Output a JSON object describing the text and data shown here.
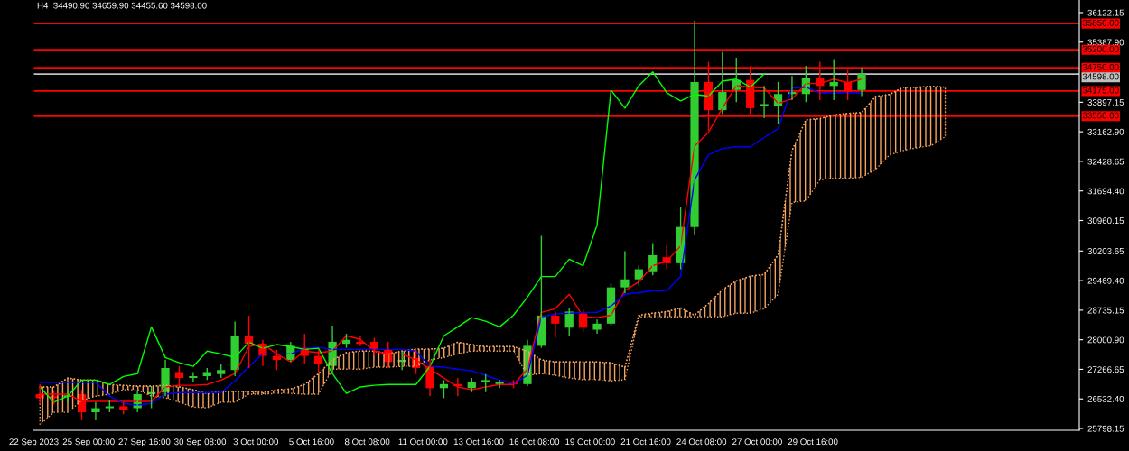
{
  "chart_data": {
    "type": "candlestick",
    "title": "H4  34490.90 34659.90 34455.60 34598.00",
    "x": [
      "2023-09-22T16:00",
      "2023-09-23T08:00",
      "2023-09-24T00:00",
      "2023-09-24T16:00",
      "2023-09-25T08:00",
      "2023-09-26T00:00",
      "2023-09-26T16:00",
      "2023-09-27T08:00",
      "2023-09-28T00:00",
      "2023-09-28T16:00",
      "2023-09-29T08:00",
      "2023-09-30T00:00",
      "2023-09-30T16:00",
      "2023-10-01T08:00",
      "2023-10-02T00:00",
      "2023-10-02T16:00",
      "2023-10-03T08:00",
      "2023-10-04T00:00",
      "2023-10-04T16:00",
      "2023-10-05T08:00",
      "2023-10-06T00:00",
      "2023-10-06T16:00",
      "2023-10-07T08:00",
      "2023-10-08T00:00",
      "2023-10-08T16:00",
      "2023-10-09T08:00",
      "2023-10-10T00:00",
      "2023-10-10T16:00",
      "2023-10-11T08:00",
      "2023-10-12T00:00",
      "2023-10-12T16:00",
      "2023-10-13T08:00",
      "2023-10-14T00:00",
      "2023-10-14T16:00",
      "2023-10-15T08:00",
      "2023-10-16T00:00",
      "2023-10-16T16:00",
      "2023-10-17T08:00",
      "2023-10-18T00:00",
      "2023-10-18T16:00",
      "2023-10-19T08:00",
      "2023-10-20T00:00",
      "2023-10-20T16:00",
      "2023-10-21T08:00",
      "2023-10-22T00:00",
      "2023-10-22T16:00",
      "2023-10-23T08:00",
      "2023-10-24T00:00",
      "2023-10-24T16:00",
      "2023-10-25T08:00",
      "2023-10-26T00:00",
      "2023-10-26T16:00",
      "2023-10-27T08:00",
      "2023-10-28T00:00",
      "2023-10-28T16:00",
      "2023-10-29T08:00",
      "2023-10-30T00:00",
      "2023-10-30T16:00",
      "2023-10-31T08:00",
      "2023-11-01T00:00"
    ],
    "ohlc": [
      [
        26650,
        26900,
        26400,
        26550
      ],
      [
        26600,
        26750,
        26400,
        26550
      ],
      [
        26580,
        26750,
        26450,
        26620
      ],
      [
        26650,
        26750,
        26000,
        26200
      ],
      [
        26200,
        26450,
        26000,
        26300
      ],
      [
        26300,
        26500,
        26200,
        26350
      ],
      [
        26350,
        26450,
        26150,
        26250
      ],
      [
        26300,
        26750,
        26200,
        26650
      ],
      [
        26650,
        26850,
        26300,
        26700
      ],
      [
        26700,
        27500,
        26600,
        27300
      ],
      [
        27200,
        27350,
        26850,
        27050
      ],
      [
        27050,
        27200,
        26950,
        27100
      ],
      [
        27100,
        27300,
        27000,
        27200
      ],
      [
        27150,
        27400,
        27050,
        27250
      ],
      [
        27250,
        28450,
        27100,
        28100
      ],
      [
        28100,
        28600,
        27300,
        27900
      ],
      [
        27900,
        28000,
        27350,
        27600
      ],
      [
        27600,
        27750,
        27250,
        27500
      ],
      [
        27500,
        27950,
        27450,
        27850
      ],
      [
        27800,
        28150,
        27400,
        27600
      ],
      [
        27600,
        27750,
        27200,
        27400
      ],
      [
        27350,
        28350,
        27150,
        27950
      ],
      [
        27900,
        28150,
        27800,
        28000
      ],
      [
        27950,
        28100,
        27850,
        27900
      ],
      [
        27950,
        28050,
        27600,
        27750
      ],
      [
        27750,
        27950,
        27300,
        27450
      ],
      [
        27450,
        27700,
        27250,
        27500
      ],
      [
        27550,
        27750,
        27150,
        27300
      ],
      [
        27350,
        27500,
        26600,
        26800
      ],
      [
        26800,
        27000,
        26550,
        26900
      ],
      [
        26900,
        27050,
        26600,
        26850
      ],
      [
        26800,
        27050,
        26700,
        26950
      ],
      [
        26950,
        27150,
        26700,
        27000
      ],
      [
        26900,
        27000,
        26800,
        26950
      ],
      [
        26950,
        27000,
        26800,
        26900
      ],
      [
        26900,
        28000,
        26850,
        27850
      ],
      [
        27850,
        30580,
        27800,
        28600
      ],
      [
        28600,
        28700,
        28050,
        28400
      ],
      [
        28300,
        28800,
        28100,
        28700
      ],
      [
        28650,
        28750,
        28200,
        28300
      ],
      [
        28250,
        28500,
        28150,
        28400
      ],
      [
        28400,
        29400,
        28350,
        29300
      ],
      [
        29300,
        30200,
        29150,
        29500
      ],
      [
        29500,
        29850,
        29350,
        29750
      ],
      [
        29700,
        30400,
        29600,
        30100
      ],
      [
        30050,
        30350,
        29750,
        29900
      ],
      [
        29900,
        31300,
        29750,
        30800
      ],
      [
        30800,
        35920,
        30600,
        34400
      ],
      [
        34400,
        34900,
        33200,
        33700
      ],
      [
        33700,
        35150,
        33600,
        34150
      ],
      [
        34200,
        35000,
        33900,
        34450
      ],
      [
        34450,
        34800,
        33600,
        33750
      ],
      [
        33800,
        34300,
        33500,
        33850
      ],
      [
        33800,
        34400,
        33350,
        34100
      ],
      [
        34100,
        34550,
        33950,
        34150
      ],
      [
        34100,
        34800,
        33900,
        34500
      ],
      [
        34500,
        34900,
        33950,
        34300
      ],
      [
        34300,
        34970,
        33950,
        34400
      ],
      [
        34400,
        34700,
        33950,
        34150
      ],
      [
        34200,
        34750,
        34050,
        34598
      ]
    ],
    "colors": [
      "#ff0000",
      "#ff0000",
      "#32cd32",
      "#ff0000",
      "#32cd32",
      "#32cd32",
      "#ff0000",
      "#32cd32",
      "#32cd32",
      "#32cd32",
      "#ff0000",
      "#32cd32",
      "#32cd32",
      "#32cd32",
      "#32cd32",
      "#ff0000",
      "#ff0000",
      "#ff0000",
      "#32cd32",
      "#ff0000",
      "#ff0000",
      "#32cd32",
      "#32cd32",
      "#ff0000",
      "#ff0000",
      "#ff0000",
      "#32cd32",
      "#ff0000",
      "#ff0000",
      "#32cd32",
      "#ff0000",
      "#32cd32",
      "#32cd32",
      "#32cd32",
      "#ff0000",
      "#32cd32",
      "#32cd32",
      "#ff0000",
      "#32cd32",
      "#ff0000",
      "#32cd32",
      "#32cd32",
      "#32cd32",
      "#32cd32",
      "#32cd32",
      "#ff0000",
      "#32cd32",
      "#32cd32",
      "#ff0000",
      "#32cd32",
      "#32cd32",
      "#ff0000",
      "#32cd32",
      "#32cd32",
      "#32cd32",
      "#32cd32",
      "#ff0000",
      "#32cd32",
      "#ff0000",
      "#32cd32"
    ],
    "series": [
      {
        "type": "line",
        "color": "#f4a460",
        "line_style": "dotted",
        "x": [
          "2023-09-22T16:00",
          "2023-09-23T08:00",
          "2023-09-24T00:00",
          "2023-09-24T16:00",
          "2023-09-25T08:00",
          "2023-09-26T00:00",
          "2023-09-26T16:00",
          "2023-09-27T08:00",
          "2023-09-28T00:00",
          "2023-09-28T16:00",
          "2023-09-29T08:00",
          "2023-09-30T00:00",
          "2023-09-30T16:00",
          "2023-10-01T08:00",
          "2023-10-02T00:00",
          "2023-10-02T16:00",
          "2023-10-03T08:00",
          "2023-10-04T00:00",
          "2023-10-04T16:00",
          "2023-10-05T08:00",
          "2023-10-06T00:00",
          "2023-10-06T16:00",
          "2023-10-07T08:00",
          "2023-10-08T00:00",
          "2023-10-08T16:00",
          "2023-10-09T08:00",
          "2023-10-10T00:00",
          "2023-10-10T16:00",
          "2023-10-11T08:00",
          "2023-10-12T00:00",
          "2023-10-12T16:00",
          "2023-10-13T08:00",
          "2023-10-14T00:00",
          "2023-10-14T16:00",
          "2023-10-15T08:00",
          "2023-10-16T00:00",
          "2023-10-16T16:00",
          "2023-10-17T08:00",
          "2023-10-18T00:00",
          "2023-10-18T16:00",
          "2023-10-19T08:00",
          "2023-10-20T00:00",
          "2023-10-20T16:00",
          "2023-10-21T08:00",
          "2023-10-22T00:00",
          "2023-10-22T16:00",
          "2023-10-23T08:00",
          "2023-10-24T00:00",
          "2023-10-24T16:00",
          "2023-10-25T08:00",
          "2023-10-26T00:00",
          "2023-10-26T16:00",
          "2023-10-27T08:00",
          "2023-10-28T00:00",
          "2023-10-28T16:00",
          "2023-10-29T08:00",
          "2023-10-30T00:00",
          "2023-10-30T16:00",
          "2023-10-31T08:00",
          "2023-11-01T00:00",
          "2023-11-01T16:00",
          "2023-11-02T08:00",
          "2023-11-03T00:00",
          "2023-11-03T16:00",
          "2023-11-04T08:00",
          "2023-11-05T00:00"
        ],
        "values": [
          26830,
          26830,
          27050,
          27000,
          27000,
          26890,
          26870,
          26850,
          26850,
          26870,
          26830,
          26760,
          26670,
          26720,
          26720,
          26720,
          26690,
          26760,
          26780,
          26890,
          27160,
          27500,
          27680,
          27720,
          27720,
          27650,
          27720,
          27770,
          27770,
          27790,
          27940,
          27880,
          27830,
          27830,
          27830,
          27720,
          27500,
          27450,
          27450,
          27450,
          27450,
          27430,
          27320,
          28610,
          28660,
          28700,
          28790,
          28610,
          28900,
          29240,
          29460,
          29580,
          29620,
          30110,
          32700,
          33460,
          33490,
          33580,
          33620,
          33640,
          34040,
          34090,
          34270,
          34270,
          34290,
          34270
        ],
        "upper": [
          26830,
          26830,
          27050,
          27000,
          27000,
          26890,
          26870,
          26850,
          26850,
          26870,
          26830,
          26760,
          26670,
          26720,
          26720,
          26720,
          26690,
          26760,
          26780,
          26890,
          27160,
          27500,
          27680,
          27720,
          27720,
          27650,
          27720,
          27770,
          27770,
          27790,
          27940,
          27880,
          27830,
          27830,
          27830,
          27720,
          27500,
          27450,
          27450,
          27450,
          27450,
          27430,
          27320,
          28610,
          28660,
          28700,
          28790,
          28610,
          28900,
          29240,
          29460,
          29580,
          29620,
          30110,
          32700,
          33460,
          33490,
          33580,
          33620,
          33640,
          34040,
          34090,
          34270,
          34270,
          34290,
          34270
        ],
        "lower": [
          25890,
          26200,
          26200,
          26490,
          26600,
          26650,
          26760,
          26760,
          26600,
          26560,
          26450,
          26330,
          26310,
          26450,
          26450,
          26650,
          26650,
          26670,
          26670,
          26650,
          26650,
          27270,
          27270,
          27270,
          27320,
          27320,
          27340,
          27340,
          27500,
          27560,
          27650,
          27720,
          27720,
          27720,
          27720,
          27120,
          27160,
          27120,
          27050,
          27010,
          27010,
          26980,
          27010,
          28570,
          28570,
          28570,
          28570,
          28570,
          28570,
          28570,
          28660,
          28660,
          28770,
          29130,
          31410,
          31450,
          31970,
          32010,
          32010,
          32030,
          32230,
          32590,
          32700,
          32770,
          32820,
          33040
        ]
      },
      {
        "type": "line",
        "color": "#ff0000",
        "values": [
          26650,
          26650,
          26650,
          26470,
          26470,
          26470,
          26470,
          26470,
          26470,
          26830,
          26870,
          26870,
          26890,
          27000,
          27160,
          27830,
          27900,
          27650,
          27450,
          27720,
          27680,
          27720,
          28100,
          28010,
          27720,
          27650,
          27650,
          27500,
          27270,
          27050,
          26830,
          26760,
          26830,
          26890,
          26890,
          27270,
          28680,
          28770,
          29130,
          28570,
          28550,
          28610,
          29220,
          29440,
          29840,
          29950,
          30330,
          32810,
          33150,
          33750,
          34310,
          34270,
          34250,
          33870,
          33980,
          34360,
          34360,
          34470,
          34380,
          34470
        ]
      },
      {
        "type": "line",
        "color": "#0000ff",
        "values": [
          26940,
          26940,
          26940,
          26940,
          26940,
          26600,
          26420,
          26380,
          26420,
          26650,
          26690,
          26690,
          26690,
          26690,
          26980,
          27340,
          27650,
          27650,
          27650,
          27790,
          27810,
          27760,
          27760,
          27760,
          27760,
          27760,
          27760,
          27720,
          27340,
          27320,
          27270,
          27230,
          27120,
          27000,
          26910,
          27120,
          28570,
          28640,
          28660,
          28680,
          28680,
          28840,
          29130,
          29170,
          29220,
          29220,
          29570,
          31970,
          32590,
          32750,
          32790,
          32790,
          33020,
          33240,
          34250,
          34270,
          34130,
          34130,
          34130,
          34130
        ]
      },
      {
        "type": "line",
        "color": "#00ff00",
        "values": [
          26830,
          26450,
          26600,
          27000,
          27000,
          26890,
          27090,
          27160,
          28320,
          27560,
          27430,
          27340,
          27720,
          27650,
          27560,
          27940,
          27790,
          27880,
          27830,
          27760,
          27790,
          27160,
          26670,
          26830,
          26870,
          26890,
          26890,
          26890,
          27340,
          28100,
          28320,
          28550,
          28460,
          28320,
          28610,
          29060,
          29570,
          29570,
          30000,
          29840,
          30850,
          34200,
          33750,
          34310,
          34650,
          34130,
          33930,
          34090,
          34050,
          34420,
          34470,
          34270,
          34600,
          null,
          null,
          null,
          null,
          null,
          null,
          null
        ]
      }
    ],
    "xlim": [
      "2023-09-22T09:00",
      "2023-11-11T10:00"
    ],
    "ylim": [
      25754,
      36435
    ],
    "xticks": [
      {
        "value": "2023-09-22T09:00",
        "label": "22 Sep 2023"
      },
      {
        "value": "2023-09-25T00:00",
        "label": "25 Sep 00:00"
      },
      {
        "value": "2023-09-27T16:00",
        "label": "27 Sep 16:00"
      },
      {
        "value": "2023-09-30T08:00",
        "label": "30 Sep 08:00"
      },
      {
        "value": "2023-10-03T00:00",
        "label": "3 Oct 00:00"
      },
      {
        "value": "2023-10-05T16:00",
        "label": "5 Oct 16:00"
      },
      {
        "value": "2023-10-08T08:00",
        "label": "8 Oct 08:00"
      },
      {
        "value": "2023-10-11T00:00",
        "label": "11 Oct 00:00"
      },
      {
        "value": "2023-10-13T16:00",
        "label": "13 Oct 16:00"
      },
      {
        "value": "2023-10-16T08:00",
        "label": "16 Oct 08:00"
      },
      {
        "value": "2023-10-19T00:00",
        "label": "19 Oct 00:00"
      },
      {
        "value": "2023-10-21T16:00",
        "label": "21 Oct 16:00"
      },
      {
        "value": "2023-10-24T08:00",
        "label": "24 Oct 08:00"
      },
      {
        "value": "2023-10-27T00:00",
        "label": "27 Oct 00:00"
      },
      {
        "value": "2023-10-29T16:00",
        "label": "29 Oct 16:00"
      }
    ],
    "yticks": [
      36122.15,
      {
        "value": 35387.9,
        "label": "35387.90"
      },
      33897.15,
      {
        "value": 33162.9,
        "label": "33162.90"
      },
      32428.65,
      {
        "value": 31694.4,
        "label": "31694.40"
      },
      30960.15,
      30203.65,
      {
        "value": 29469.4,
        "label": "29469.40"
      },
      28735.15,
      {
        "value": 28000.9,
        "label": "28000.90"
      },
      27266.65,
      {
        "value": 26532.4,
        "label": "26532.40"
      },
      25798.15
    ],
    "ref_lines": [
      {
        "axis": "y",
        "value": 35850,
        "label": "35850.00",
        "color": "#ff0000"
      },
      {
        "axis": "y",
        "value": 35200,
        "label": "35200.00",
        "color": "#ff0000"
      },
      {
        "axis": "y",
        "value": 34750,
        "label": "34750.00",
        "color": "#ff0000"
      },
      {
        "axis": "y",
        "value": 34598,
        "label": "34598.00",
        "color": "#c0c0c0"
      },
      {
        "axis": "y",
        "value": 34175,
        "label": "34175.00",
        "color": "#ff0000"
      },
      {
        "axis": "y",
        "value": 33550,
        "label": "33550.00",
        "color": "#ff0000"
      }
    ]
  }
}
